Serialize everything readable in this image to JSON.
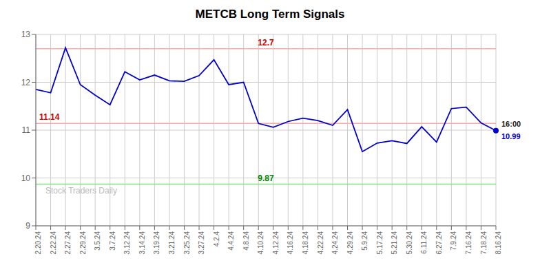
{
  "chart_data": {
    "type": "line",
    "title": "METCB Long Term Signals",
    "categories": [
      "2.20.24",
      "2.22.24",
      "2.27.24",
      "2.29.24",
      "3.5.24",
      "3.7.24",
      "3.12.24",
      "3.14.24",
      "3.19.24",
      "3.21.24",
      "3.25.24",
      "3.27.24",
      "4.2.4",
      "4.4.24",
      "4.8.24",
      "4.10.24",
      "4.12.24",
      "4.16.24",
      "4.18.24",
      "4.22.24",
      "4.24.24",
      "4.29.24",
      "5.9.24",
      "5.17.24",
      "5.21.24",
      "5.30.24",
      "6.11.24",
      "6.27.24",
      "7.9.24",
      "7.16.24",
      "7.18.24",
      "8.16.24"
    ],
    "values": [
      11.85,
      11.78,
      12.72,
      11.95,
      11.73,
      11.53,
      12.22,
      12.05,
      12.15,
      12.03,
      12.02,
      12.14,
      12.47,
      11.95,
      12.0,
      11.14,
      11.06,
      11.18,
      11.25,
      11.2,
      11.1,
      11.43,
      10.55,
      10.73,
      10.78,
      10.72,
      11.07,
      10.75,
      11.45,
      11.48,
      11.15,
      10.99
    ],
    "color": "#0000cc",
    "ylim": [
      9.0,
      13.0
    ],
    "yticks": [
      9,
      10,
      11,
      12,
      13
    ],
    "grid": true,
    "reference_lines": [
      {
        "value": 12.7,
        "label": "12.7",
        "color": "#ffaaaa",
        "label_color": "#cc0000"
      },
      {
        "value": 9.87,
        "label": "9.87",
        "color": "#88dd88",
        "label_color": "#008800"
      },
      {
        "value": 11.14,
        "label": "11.14",
        "color": "#ffaaaa",
        "label_color": "#cc0000"
      }
    ],
    "annotations": [
      "16:00",
      "10.99"
    ],
    "watermark": "Stock Traders Daily"
  }
}
